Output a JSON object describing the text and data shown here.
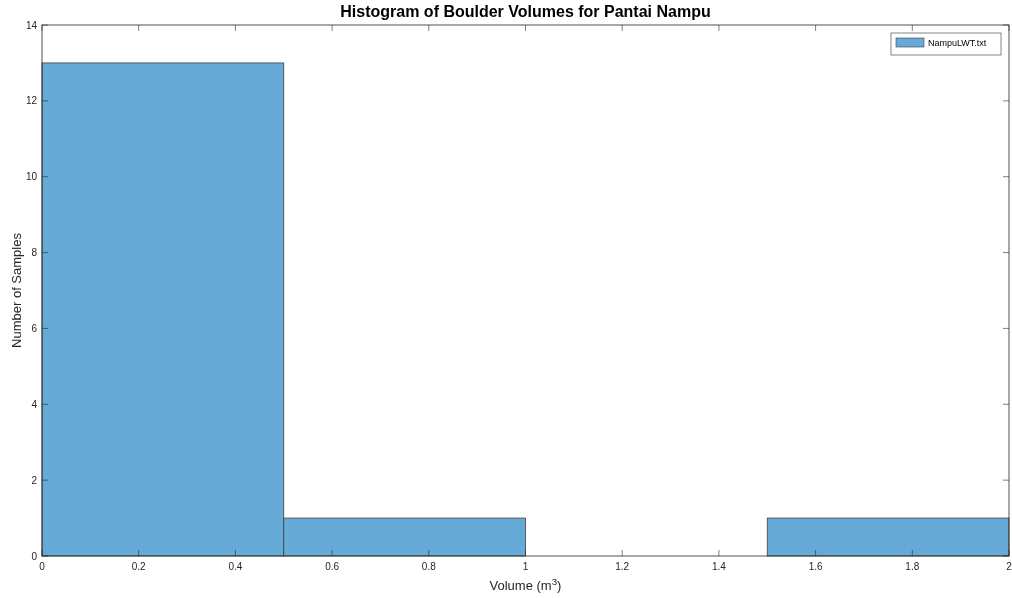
{
  "chart_data": {
    "type": "histogram",
    "title": "Histogram of Boulder Volumes for Pantai Nampu",
    "xlabel": "Volume (m$^{3}$)",
    "ylabel": "Number of Samples",
    "bins": [
      0,
      0.5,
      1,
      1.5,
      2
    ],
    "series": [
      {
        "name": "NampuLWT.txt",
        "color": "#66aad7",
        "values": [
          13,
          1,
          0,
          1
        ]
      }
    ],
    "xlim": [
      0,
      2
    ],
    "xticks": [
      0,
      0.2,
      0.4,
      0.6,
      0.8,
      1,
      1.2,
      1.4,
      1.6,
      1.8,
      2
    ],
    "ylim": [
      0,
      14
    ],
    "yticks": [
      0,
      2,
      4,
      6,
      8,
      10,
      12,
      14
    ],
    "grid": false,
    "legend": "top right"
  }
}
